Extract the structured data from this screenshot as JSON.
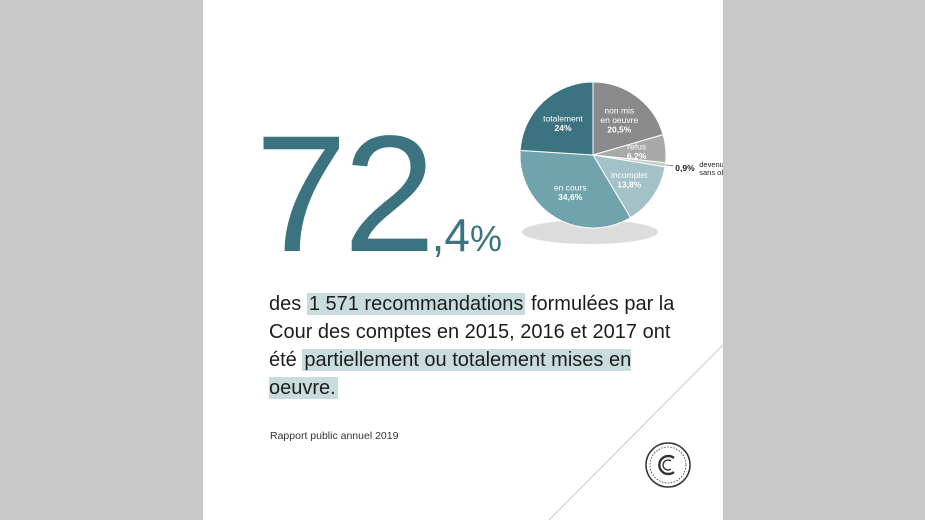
{
  "headline": {
    "integer": "72",
    "decimal": ",4",
    "percent": "%"
  },
  "statement": {
    "part1": "des",
    "highlight1": "1 571 recommandations",
    "part2": "formulées par la Cour des comptes en 2015, 2016 et 2017 ont été",
    "highlight2": "partiellement ou totalement mises en oeuvre."
  },
  "source": "Rapport public annuel 2019",
  "chart_data": {
    "type": "pie",
    "slices": [
      {
        "label": [
          "non mis",
          "en oeuvre"
        ],
        "value_label": "20,5%",
        "value": 20.5,
        "color": "#8a8a8a",
        "text_color": "#ffffff",
        "label_outside": false
      },
      {
        "label": [
          "refus"
        ],
        "value_label": "6,2%",
        "value": 6.2,
        "color": "#a9a9a9",
        "text_color": "#ffffff",
        "label_outside": false
      },
      {
        "label": [
          "devenu",
          "sans objet"
        ],
        "value_label": "0,9%",
        "value": 0.9,
        "color": "#c8c8c8",
        "text_color": "#222222",
        "label_outside": true
      },
      {
        "label": [
          "incomplet"
        ],
        "value_label": "13,8%",
        "value": 13.8,
        "color": "#a3c1c7",
        "text_color": "#ffffff",
        "label_outside": false
      },
      {
        "label": [
          "en cours"
        ],
        "value_label": "34,6%",
        "value": 34.6,
        "color": "#71a3ac",
        "text_color": "#ffffff",
        "label_outside": false
      },
      {
        "label": [
          "totalement"
        ],
        "value_label": "24%",
        "value": 24,
        "color": "#3b7480",
        "text_color": "#ffffff",
        "label_outside": false
      }
    ]
  }
}
